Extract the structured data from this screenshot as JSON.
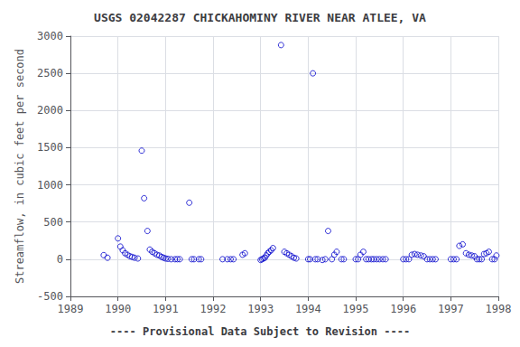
{
  "chart_data": {
    "type": "scatter",
    "title": "USGS 02042287 CHICKAHOMINY RIVER NEAR ATLEE, VA",
    "subtitle": "---- Provisional Data Subject to Revision ----",
    "ylabel": "Streamflow, in cubic feet per second",
    "color": "#0000cc",
    "marker": "open_circle",
    "grid": true,
    "xlim": [
      1989,
      1998
    ],
    "ylim": [
      -500,
      3000
    ],
    "xticks": [
      1989,
      1990,
      1991,
      1992,
      1993,
      1994,
      1995,
      1996,
      1997,
      1998
    ],
    "yticks": [
      -500,
      0,
      500,
      1000,
      1500,
      2000,
      2500,
      3000
    ],
    "x": [
      1989.7,
      1989.78,
      1990.0,
      1990.05,
      1990.1,
      1990.15,
      1990.2,
      1990.25,
      1990.3,
      1990.35,
      1990.42,
      1990.5,
      1990.55,
      1990.62,
      1990.67,
      1990.72,
      1990.77,
      1990.82,
      1990.87,
      1990.92,
      1990.96,
      1991.0,
      1991.05,
      1991.12,
      1991.2,
      1991.25,
      1991.3,
      1991.5,
      1991.55,
      1991.6,
      1991.7,
      1991.75,
      1992.2,
      1992.3,
      1992.37,
      1992.43,
      1992.62,
      1992.67,
      1993.0,
      1993.03,
      1993.06,
      1993.09,
      1993.12,
      1993.15,
      1993.18,
      1993.22,
      1993.26,
      1993.43,
      1993.5,
      1993.55,
      1993.6,
      1993.65,
      1993.7,
      1993.75,
      1994.0,
      1994.04,
      1994.1,
      1994.15,
      1994.2,
      1994.3,
      1994.36,
      1994.42,
      1994.5,
      1994.55,
      1994.6,
      1994.7,
      1994.75,
      1995.0,
      1995.05,
      1995.1,
      1995.16,
      1995.22,
      1995.27,
      1995.33,
      1995.38,
      1995.44,
      1995.5,
      1995.57,
      1995.63,
      1996.0,
      1996.06,
      1996.12,
      1996.18,
      1996.24,
      1996.3,
      1996.37,
      1996.43,
      1996.5,
      1996.56,
      1996.62,
      1996.68,
      1997.0,
      1997.06,
      1997.12,
      1997.18,
      1997.25,
      1997.32,
      1997.38,
      1997.44,
      1997.5,
      1997.55,
      1997.6,
      1997.65,
      1997.7,
      1997.75,
      1997.8,
      1997.87,
      1997.92,
      1997.96
    ],
    "values": [
      55,
      20,
      280,
      170,
      120,
      80,
      60,
      40,
      30,
      20,
      10,
      1460,
      820,
      380,
      130,
      100,
      80,
      60,
      50,
      30,
      20,
      10,
      5,
      0,
      0,
      0,
      0,
      760,
      0,
      0,
      0,
      0,
      0,
      0,
      0,
      0,
      60,
      80,
      -10,
      0,
      10,
      20,
      50,
      80,
      100,
      120,
      150,
      2880,
      100,
      80,
      60,
      40,
      20,
      10,
      0,
      0,
      2500,
      0,
      0,
      -10,
      0,
      380,
      0,
      60,
      100,
      0,
      0,
      0,
      0,
      60,
      100,
      0,
      0,
      0,
      0,
      0,
      0,
      0,
      0,
      0,
      0,
      0,
      60,
      70,
      60,
      50,
      40,
      0,
      0,
      0,
      0,
      0,
      0,
      0,
      180,
      200,
      80,
      60,
      50,
      40,
      0,
      0,
      0,
      70,
      80,
      100,
      0,
      0,
      50
    ]
  }
}
